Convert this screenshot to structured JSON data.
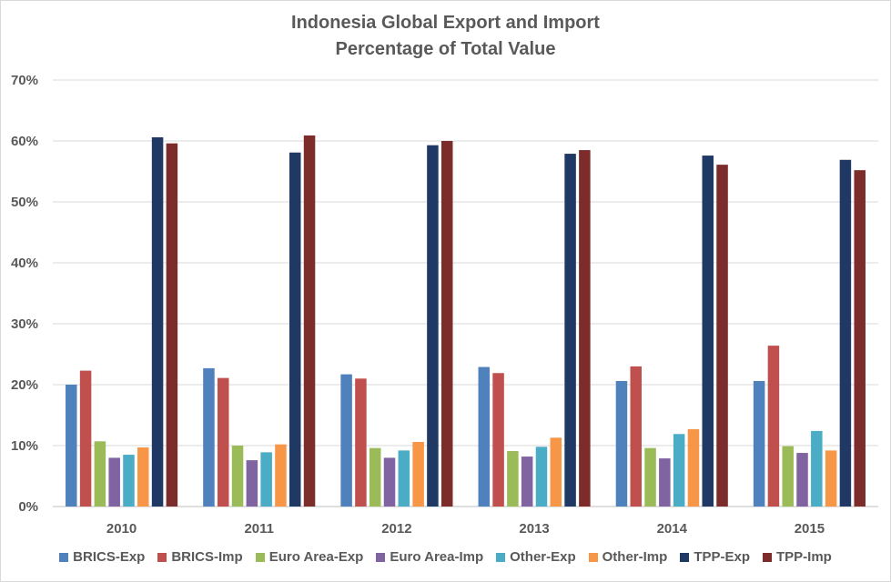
{
  "chart_data": {
    "type": "bar",
    "title": "Indonesia Global Export and Import",
    "subtitle": "Percentage of Total Value",
    "categories": [
      "2010",
      "2011",
      "2012",
      "2013",
      "2014",
      "2015"
    ],
    "ylim": [
      0,
      70
    ],
    "yticks": [
      "0%",
      "10%",
      "20%",
      "30%",
      "40%",
      "50%",
      "60%",
      "70%"
    ],
    "grid": true,
    "legend_position": "bottom",
    "series": [
      {
        "name": "BRICS-Exp",
        "color": "#4f81bd",
        "values": [
          20.0,
          22.7,
          21.7,
          22.9,
          20.6,
          20.6
        ]
      },
      {
        "name": "BRICS-Imp",
        "color": "#c0504d",
        "values": [
          22.3,
          21.1,
          21.0,
          21.9,
          23.0,
          26.4
        ]
      },
      {
        "name": "Euro Area-Exp",
        "color": "#9bbb59",
        "values": [
          10.7,
          10.0,
          9.6,
          9.1,
          9.6,
          9.9
        ]
      },
      {
        "name": "Euro Area-Imp",
        "color": "#8064a2",
        "values": [
          8.0,
          7.6,
          8.0,
          8.2,
          7.9,
          8.8
        ]
      },
      {
        "name": "Other-Exp",
        "color": "#4bacc6",
        "values": [
          8.5,
          8.9,
          9.2,
          9.8,
          11.9,
          12.4
        ]
      },
      {
        "name": "Other-Imp",
        "color": "#f79646",
        "values": [
          9.7,
          10.2,
          10.6,
          11.3,
          12.7,
          9.2
        ]
      },
      {
        "name": "TPP-Exp",
        "color": "#1f3864",
        "values": [
          60.6,
          58.1,
          59.3,
          57.9,
          57.6,
          56.9
        ]
      },
      {
        "name": "TPP-Imp",
        "color": "#7b2c2b",
        "values": [
          59.6,
          60.9,
          60.0,
          58.5,
          56.1,
          55.2
        ]
      }
    ]
  }
}
